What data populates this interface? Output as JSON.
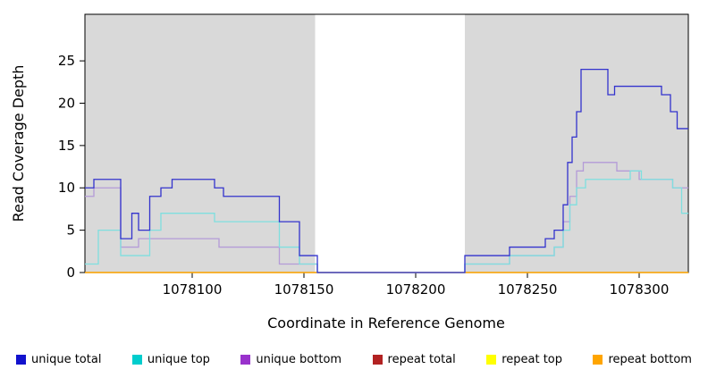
{
  "chart_data": {
    "type": "line",
    "step": true,
    "title": "",
    "xlabel": "Coordinate in Reference Genome",
    "ylabel": "Read Coverage Depth",
    "xlim": [
      1078052,
      1078322
    ],
    "ylim": [
      0,
      30.5
    ],
    "xticks": [
      1078100,
      1078150,
      1078200,
      1078250,
      1078300
    ],
    "yticks": [
      0,
      5,
      10,
      15,
      20,
      25
    ],
    "grid": false,
    "legend_position": "bottom",
    "background_regions": [
      {
        "name": "left-aligned-region",
        "from": 1078052,
        "to": 1078155,
        "color": "#d9d9d9"
      },
      {
        "name": "gap-region",
        "from": 1078155,
        "to": 1078222,
        "color": "#ffffff"
      },
      {
        "name": "right-aligned-region",
        "from": 1078222,
        "to": 1078322,
        "color": "#d9d9d9"
      }
    ],
    "series": [
      {
        "name": "repeat total",
        "color": "#b22222",
        "points": [
          [
            1078052,
            0
          ]
        ]
      },
      {
        "name": "repeat top",
        "color": "#ffff00",
        "points": [
          [
            1078052,
            0
          ]
        ]
      },
      {
        "name": "repeat bottom",
        "color": "#ffa500",
        "points": [
          [
            1078052,
            0
          ]
        ]
      },
      {
        "name": "unique bottom",
        "color": "#b49bd8",
        "points": [
          [
            1078052,
            9
          ],
          [
            1078056,
            10
          ],
          [
            1078068,
            3
          ],
          [
            1078076,
            4
          ],
          [
            1078112,
            3
          ],
          [
            1078139,
            1
          ],
          [
            1078156,
            0
          ],
          [
            1078222,
            1
          ],
          [
            1078242,
            2
          ],
          [
            1078262,
            3
          ],
          [
            1078266,
            6
          ],
          [
            1078269,
            9
          ],
          [
            1078272,
            12
          ],
          [
            1078275,
            13
          ],
          [
            1078290,
            12
          ],
          [
            1078300,
            11
          ],
          [
            1078315,
            10
          ]
        ]
      },
      {
        "name": "unique top",
        "color": "#7fdfdf",
        "points": [
          [
            1078052,
            1
          ],
          [
            1078058,
            5
          ],
          [
            1078068,
            2
          ],
          [
            1078081,
            5
          ],
          [
            1078086,
            7
          ],
          [
            1078110,
            6
          ],
          [
            1078139,
            3
          ],
          [
            1078148,
            1
          ],
          [
            1078156,
            0
          ],
          [
            1078222,
            1
          ],
          [
            1078242,
            2
          ],
          [
            1078262,
            3
          ],
          [
            1078266,
            5
          ],
          [
            1078269,
            8
          ],
          [
            1078272,
            10
          ],
          [
            1078276,
            11
          ],
          [
            1078296,
            12
          ],
          [
            1078301,
            11
          ],
          [
            1078315,
            10
          ],
          [
            1078319,
            7
          ]
        ]
      },
      {
        "name": "unique total",
        "color": "#3333cd",
        "points": [
          [
            1078052,
            10
          ],
          [
            1078056,
            11
          ],
          [
            1078068,
            4
          ],
          [
            1078073,
            7
          ],
          [
            1078076,
            5
          ],
          [
            1078081,
            9
          ],
          [
            1078086,
            10
          ],
          [
            1078091,
            11
          ],
          [
            1078110,
            10
          ],
          [
            1078114,
            9
          ],
          [
            1078139,
            6
          ],
          [
            1078148,
            2
          ],
          [
            1078156,
            0
          ],
          [
            1078222,
            2
          ],
          [
            1078242,
            3
          ],
          [
            1078258,
            4
          ],
          [
            1078262,
            5
          ],
          [
            1078266,
            8
          ],
          [
            1078268,
            13
          ],
          [
            1078270,
            16
          ],
          [
            1078272,
            19
          ],
          [
            1078274,
            24
          ],
          [
            1078286,
            21
          ],
          [
            1078289,
            22
          ],
          [
            1078310,
            21
          ],
          [
            1078314,
            19
          ],
          [
            1078317,
            17
          ]
        ]
      }
    ]
  },
  "legend": {
    "items": [
      {
        "label": "unique total",
        "color": "#1212cd"
      },
      {
        "label": "unique top",
        "color": "#00cdcd"
      },
      {
        "label": "unique bottom",
        "color": "#9932cc"
      },
      {
        "label": "repeat total",
        "color": "#b22222"
      },
      {
        "label": "repeat top",
        "color": "#ffff00"
      },
      {
        "label": "repeat bottom",
        "color": "#ffa500"
      }
    ]
  }
}
